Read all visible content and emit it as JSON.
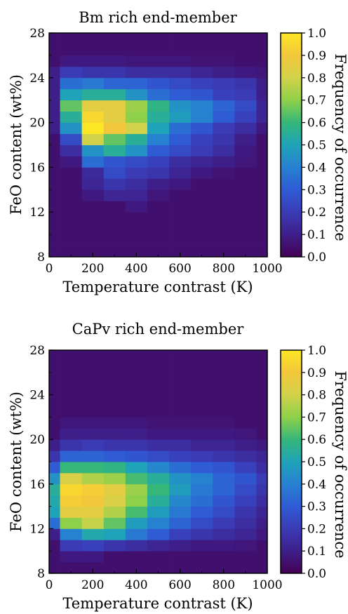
{
  "colors": {
    "colormap": [
      "#440154",
      "#3e1f8a",
      "#3a3bb5",
      "#2f5bd4",
      "#2781d1",
      "#1fa3b8",
      "#35b779",
      "#8fd04a",
      "#d2d24a",
      "#f3c73b",
      "#fde725"
    ],
    "background": "#ffffff"
  },
  "chart_data": [
    {
      "type": "heatmap",
      "title": "Bm rich end-member",
      "xlabel": "Temperature contrast (K)",
      "ylabel": "FeO content (wt%)",
      "colorbar_label": "Frequency of occurrence",
      "xlim": [
        0,
        1000
      ],
      "ylim": [
        8,
        28
      ],
      "clim": [
        0,
        1
      ],
      "xticks": [
        "0",
        "200",
        "400",
        "600",
        "800",
        "1000"
      ],
      "yticks": [
        "8",
        "12",
        "16",
        "20",
        "24",
        "28"
      ],
      "cticks": [
        "0.0",
        "0.1",
        "0.2",
        "0.3",
        "0.4",
        "0.5",
        "0.6",
        "0.7",
        "0.8",
        "0.9",
        "1.0"
      ],
      "x_bins": [
        0,
        50,
        150,
        250,
        350,
        450,
        550,
        650,
        750,
        850,
        950,
        1000
      ],
      "y_bins": [
        8,
        9,
        10,
        11,
        12,
        13,
        14,
        15,
        16,
        17,
        18,
        19,
        20,
        21,
        22,
        23,
        24,
        25,
        26,
        27,
        28
      ],
      "grid": false,
      "values": [
        [
          0.05,
          0.05,
          0.05,
          0.05,
          0.05,
          0.05,
          0.05,
          0.05,
          0.05,
          0.05,
          0.05
        ],
        [
          0.05,
          0.05,
          0.05,
          0.05,
          0.05,
          0.05,
          0.05,
          0.05,
          0.05,
          0.05,
          0.05
        ],
        [
          0.05,
          0.05,
          0.05,
          0.05,
          0.05,
          0.05,
          0.05,
          0.05,
          0.05,
          0.05,
          0.05
        ],
        [
          0.05,
          0.05,
          0.05,
          0.05,
          0.05,
          0.05,
          0.05,
          0.05,
          0.05,
          0.05,
          0.05
        ],
        [
          0.05,
          0.05,
          0.05,
          0.05,
          0.08,
          0.05,
          0.05,
          0.05,
          0.05,
          0.05,
          0.05
        ],
        [
          0.05,
          0.05,
          0.08,
          0.12,
          0.12,
          0.07,
          0.05,
          0.05,
          0.05,
          0.05,
          0.05
        ],
        [
          0.05,
          0.05,
          0.12,
          0.18,
          0.15,
          0.1,
          0.08,
          0.05,
          0.05,
          0.05,
          0.05
        ],
        [
          0.05,
          0.05,
          0.14,
          0.25,
          0.2,
          0.18,
          0.12,
          0.08,
          0.06,
          0.05,
          0.05
        ],
        [
          0.05,
          0.08,
          0.35,
          0.28,
          0.25,
          0.22,
          0.15,
          0.12,
          0.1,
          0.07,
          0.05
        ],
        [
          0.05,
          0.15,
          0.45,
          0.55,
          0.45,
          0.3,
          0.25,
          0.2,
          0.15,
          0.08,
          0.05
        ],
        [
          0.05,
          0.25,
          0.8,
          0.65,
          0.55,
          0.4,
          0.3,
          0.22,
          0.18,
          0.1,
          0.05
        ],
        [
          0.1,
          0.45,
          1.0,
          0.9,
          0.8,
          0.5,
          0.35,
          0.28,
          0.2,
          0.15,
          0.08
        ],
        [
          0.1,
          0.55,
          0.95,
          0.85,
          0.7,
          0.55,
          0.48,
          0.4,
          0.3,
          0.22,
          0.12
        ],
        [
          0.1,
          0.65,
          0.85,
          0.85,
          0.72,
          0.58,
          0.45,
          0.4,
          0.32,
          0.25,
          0.12
        ],
        [
          0.1,
          0.5,
          0.55,
          0.55,
          0.45,
          0.35,
          0.3,
          0.28,
          0.22,
          0.2,
          0.1
        ],
        [
          0.1,
          0.35,
          0.38,
          0.33,
          0.32,
          0.28,
          0.25,
          0.22,
          0.2,
          0.18,
          0.1
        ],
        [
          0.1,
          0.2,
          0.18,
          0.18,
          0.15,
          0.15,
          0.15,
          0.12,
          0.1,
          0.08,
          0.07
        ],
        [
          0.05,
          0.08,
          0.08,
          0.08,
          0.07,
          0.07,
          0.07,
          0.06,
          0.06,
          0.05,
          0.05
        ],
        [
          0.05,
          0.05,
          0.05,
          0.05,
          0.05,
          0.05,
          0.05,
          0.05,
          0.05,
          0.05,
          0.05
        ],
        [
          0.05,
          0.05,
          0.05,
          0.05,
          0.05,
          0.05,
          0.05,
          0.05,
          0.05,
          0.05,
          0.05
        ]
      ]
    },
    {
      "type": "heatmap",
      "title": "CaPv rich end-member",
      "xlabel": "Temperature contrast (K)",
      "ylabel": "FeO content (wt%)",
      "colorbar_label": "Frequency of occurrence",
      "xlim": [
        0,
        1000
      ],
      "ylim": [
        8,
        28
      ],
      "clim": [
        0,
        1
      ],
      "xticks": [
        "0",
        "200",
        "400",
        "600",
        "800",
        "1000"
      ],
      "yticks": [
        "8",
        "12",
        "16",
        "20",
        "24",
        "28"
      ],
      "cticks": [
        "0.0",
        "0.1",
        "0.2",
        "0.3",
        "0.4",
        "0.5",
        "0.6",
        "0.7",
        "0.8",
        "0.9",
        "1.0"
      ],
      "x_bins": [
        0,
        50,
        150,
        250,
        350,
        450,
        550,
        650,
        750,
        850,
        950,
        1000
      ],
      "y_bins": [
        8,
        9,
        10,
        11,
        12,
        13,
        14,
        15,
        16,
        17,
        18,
        19,
        20,
        21,
        22,
        23,
        24,
        25,
        26,
        27,
        28
      ],
      "grid": false,
      "values": [
        [
          0.05,
          0.05,
          0.05,
          0.05,
          0.05,
          0.05,
          0.05,
          0.05,
          0.05,
          0.05,
          0.05
        ],
        [
          0.05,
          0.08,
          0.08,
          0.05,
          0.05,
          0.05,
          0.05,
          0.05,
          0.05,
          0.05,
          0.05
        ],
        [
          0.05,
          0.2,
          0.22,
          0.18,
          0.15,
          0.12,
          0.1,
          0.08,
          0.08,
          0.07,
          0.05
        ],
        [
          0.1,
          0.4,
          0.52,
          0.5,
          0.38,
          0.3,
          0.22,
          0.18,
          0.15,
          0.12,
          0.08
        ],
        [
          0.35,
          0.7,
          0.78,
          0.65,
          0.48,
          0.4,
          0.32,
          0.25,
          0.2,
          0.15,
          0.1
        ],
        [
          0.5,
          0.85,
          0.85,
          0.75,
          0.62,
          0.48,
          0.38,
          0.3,
          0.25,
          0.18,
          0.12
        ],
        [
          0.52,
          0.92,
          0.9,
          0.82,
          0.7,
          0.55,
          0.42,
          0.35,
          0.28,
          0.22,
          0.15
        ],
        [
          0.55,
          0.95,
          0.92,
          0.85,
          0.72,
          0.6,
          0.48,
          0.38,
          0.32,
          0.25,
          0.18
        ],
        [
          0.45,
          0.82,
          0.75,
          0.72,
          0.62,
          0.55,
          0.45,
          0.4,
          0.32,
          0.28,
          0.2
        ],
        [
          0.3,
          0.6,
          0.6,
          0.58,
          0.5,
          0.42,
          0.35,
          0.3,
          0.28,
          0.22,
          0.15
        ],
        [
          0.18,
          0.32,
          0.32,
          0.3,
          0.28,
          0.25,
          0.22,
          0.2,
          0.18,
          0.15,
          0.12
        ],
        [
          0.1,
          0.18,
          0.2,
          0.18,
          0.18,
          0.15,
          0.15,
          0.12,
          0.12,
          0.1,
          0.08
        ],
        [
          0.05,
          0.1,
          0.1,
          0.1,
          0.1,
          0.08,
          0.08,
          0.08,
          0.08,
          0.07,
          0.05
        ],
        [
          0.05,
          0.07,
          0.07,
          0.07,
          0.07,
          0.06,
          0.06,
          0.06,
          0.06,
          0.05,
          0.05
        ],
        [
          0.05,
          0.05,
          0.05,
          0.05,
          0.05,
          0.05,
          0.05,
          0.05,
          0.05,
          0.05,
          0.05
        ],
        [
          0.05,
          0.05,
          0.05,
          0.05,
          0.05,
          0.05,
          0.05,
          0.05,
          0.05,
          0.05,
          0.05
        ],
        [
          0.05,
          0.05,
          0.05,
          0.05,
          0.05,
          0.05,
          0.05,
          0.05,
          0.05,
          0.05,
          0.05
        ],
        [
          0.05,
          0.05,
          0.05,
          0.05,
          0.05,
          0.05,
          0.05,
          0.05,
          0.05,
          0.05,
          0.05
        ],
        [
          0.05,
          0.05,
          0.05,
          0.05,
          0.05,
          0.05,
          0.05,
          0.05,
          0.05,
          0.05,
          0.05
        ],
        [
          0.05,
          0.05,
          0.05,
          0.05,
          0.05,
          0.05,
          0.05,
          0.05,
          0.05,
          0.05,
          0.05
        ]
      ]
    }
  ]
}
